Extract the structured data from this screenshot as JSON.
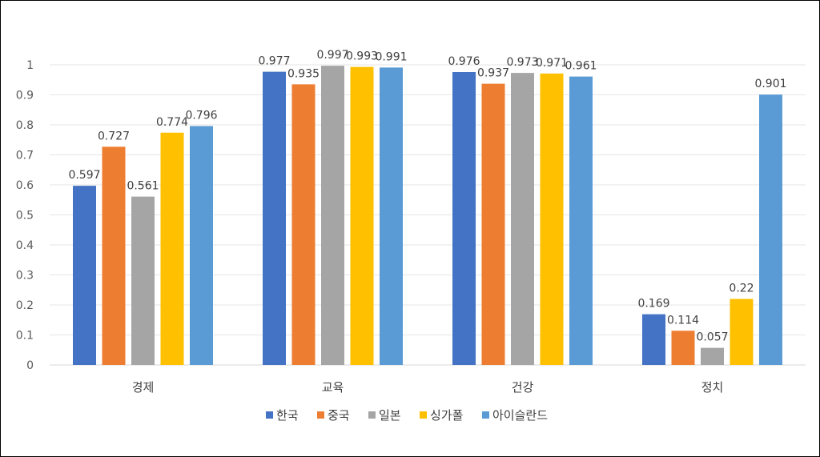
{
  "chart_data": {
    "type": "bar",
    "categories": [
      "경제",
      "교육",
      "건강",
      "정치"
    ],
    "series": [
      {
        "name": "한국",
        "color": "#4472C4",
        "values": [
          0.597,
          0.977,
          0.976,
          0.169
        ],
        "labels": [
          "0.597",
          "0.977",
          "0.976",
          "0.169"
        ]
      },
      {
        "name": "중국",
        "color": "#ED7D31",
        "values": [
          0.727,
          0.935,
          0.937,
          0.114
        ],
        "labels": [
          "0.727",
          "0.935",
          "0.937",
          "0.114"
        ]
      },
      {
        "name": "일본",
        "color": "#A5A5A5",
        "values": [
          0.561,
          0.997,
          0.973,
          0.057
        ],
        "labels": [
          "0.561",
          "0.997",
          "0.973",
          "0.057"
        ]
      },
      {
        "name": "싱가폴",
        "color": "#FFC000",
        "values": [
          0.774,
          0.993,
          0.971,
          0.22
        ],
        "labels": [
          "0.774",
          "0.993",
          "0.971",
          "0.22"
        ]
      },
      {
        "name": "아이슬란드",
        "color": "#5B9BD5",
        "values": [
          0.796,
          0.991,
          0.961,
          0.901
        ],
        "labels": [
          "0.796",
          "0.991",
          "0.961",
          "0.901"
        ]
      }
    ],
    "ylim": [
      0,
      1
    ],
    "yticks": [
      "0",
      "0.1",
      "0.2",
      "0.3",
      "0.4",
      "0.5",
      "0.6",
      "0.7",
      "0.8",
      "0.9",
      "1"
    ],
    "grid": true,
    "legend_position": "bottom",
    "title": "",
    "xlabel": "",
    "ylabel": ""
  }
}
